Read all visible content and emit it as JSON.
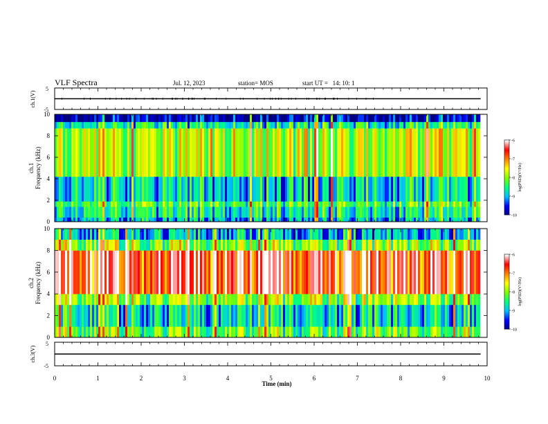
{
  "header": {
    "title": "VLF Spectra",
    "date": "Jul. 12, 2023",
    "station": "station= MOS",
    "start": "start UT =   14: 10: 1"
  },
  "colors": {
    "colormap": [
      "#000080",
      "#0000ff",
      "#00bfff",
      "#00ff7f",
      "#7fff00",
      "#ffff00",
      "#ff8000",
      "#ff0000",
      "#ffffff"
    ]
  },
  "chart_data": [
    {
      "type": "line",
      "ylabel": "ch.1(V)",
      "ylim": [
        -5,
        5
      ],
      "yticks": [
        "5",
        "-5"
      ],
      "series": [
        {
          "x": [
            0,
            9.85
          ],
          "y": [
            0,
            0
          ]
        }
      ]
    },
    {
      "type": "heatmap",
      "ylabel": "ch.1\nFrequency (kHz)",
      "ylim": [
        0,
        10
      ],
      "yticks": [
        "0",
        "2",
        "4",
        "6",
        "8",
        "10"
      ],
      "xlim": [
        0,
        9.85
      ],
      "bands": [
        {
          "f0": 0.0,
          "f1": 0.4,
          "level": 0.25
        },
        {
          "f0": 0.4,
          "f1": 1.4,
          "level": 0.35
        },
        {
          "f0": 1.4,
          "f1": 1.9,
          "level": 0.45
        },
        {
          "f0": 1.9,
          "f1": 4.2,
          "level": 0.3
        },
        {
          "f0": 4.2,
          "f1": 8.7,
          "level": 0.55
        },
        {
          "f0": 8.7,
          "f1": 9.3,
          "level": 0.35
        },
        {
          "f0": 9.3,
          "f1": 10.0,
          "level": 0.05
        }
      ],
      "colorbar": {
        "label": "log(PSD)(V²/Hz)",
        "ticks": [
          "-6",
          "-7",
          "-8",
          "-9",
          "-10"
        ],
        "range": [
          -10,
          -6
        ]
      }
    },
    {
      "type": "heatmap",
      "ylabel": "ch.2\nFrequency (kHz)",
      "ylim": [
        0,
        10
      ],
      "yticks": [
        "0",
        "2",
        "4",
        "6",
        "8",
        "10"
      ],
      "xlim": [
        0,
        9.85
      ],
      "bands": [
        {
          "f0": 0.0,
          "f1": 1.0,
          "level": 0.45
        },
        {
          "f0": 1.0,
          "f1": 3.0,
          "level": 0.3
        },
        {
          "f0": 3.0,
          "f1": 4.0,
          "level": 0.5
        },
        {
          "f0": 4.0,
          "f1": 8.0,
          "level": 0.85
        },
        {
          "f0": 8.0,
          "f1": 9.0,
          "level": 0.5
        },
        {
          "f0": 9.0,
          "f1": 10.0,
          "level": 0.25
        }
      ],
      "colorbar": {
        "label": "log(PSD)(V²/Hz)",
        "ticks": [
          "-6",
          "-7",
          "-8",
          "-9",
          "-10"
        ],
        "range": [
          -10,
          -6
        ]
      }
    },
    {
      "type": "line",
      "ylabel": "ch.3(V)",
      "ylim": [
        -5,
        5
      ],
      "yticks": [
        "5",
        "-5"
      ],
      "xlabel": "Time (min)",
      "xlim": [
        0,
        10
      ],
      "xticks": [
        "0",
        "1",
        "2",
        "3",
        "4",
        "5",
        "6",
        "7",
        "8",
        "9",
        "10"
      ],
      "series": [
        {
          "x": [
            0,
            9.85
          ],
          "y": [
            0,
            0
          ]
        }
      ]
    }
  ]
}
